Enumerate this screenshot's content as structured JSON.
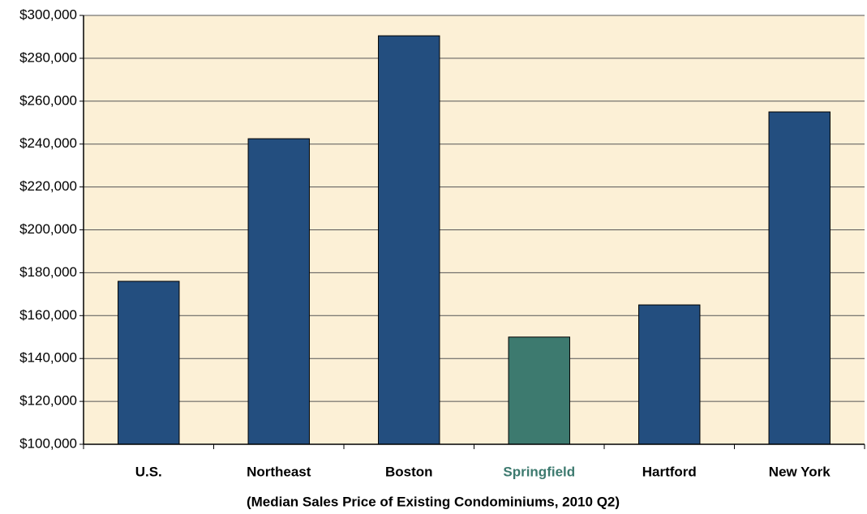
{
  "chart_data": {
    "type": "bar",
    "x_label": "(Median Sales Price of Existing Condominiums, 2010 Q2)",
    "categories": [
      "U.S.",
      "Northeast",
      "Boston",
      "Springfield",
      "Hartford",
      "New York"
    ],
    "values": [
      176000,
      242500,
      290500,
      150000,
      165000,
      255000
    ],
    "colors": [
      "#234e7f",
      "#234e7f",
      "#234e7f",
      "#3d7a6f",
      "#234e7f",
      "#234e7f"
    ],
    "label_colors": [
      "#000000",
      "#000000",
      "#000000",
      "#3d7a6f",
      "#000000",
      "#000000"
    ],
    "ylim": [
      100000,
      300000
    ],
    "yticks": [
      {
        "value": 100000,
        "label": "$100,000"
      },
      {
        "value": 120000,
        "label": "$120,000"
      },
      {
        "value": 140000,
        "label": "$140,000"
      },
      {
        "value": 160000,
        "label": "$160,000"
      },
      {
        "value": 180000,
        "label": "$180,000"
      },
      {
        "value": 200000,
        "label": "$200,000"
      },
      {
        "value": 220000,
        "label": "$220,000"
      },
      {
        "value": 240000,
        "label": "$240,000"
      },
      {
        "value": 260000,
        "label": "$260,000"
      },
      {
        "value": 280000,
        "label": "$280,000"
      },
      {
        "value": 300000,
        "label": "$300,000"
      }
    ],
    "grid": true
  }
}
